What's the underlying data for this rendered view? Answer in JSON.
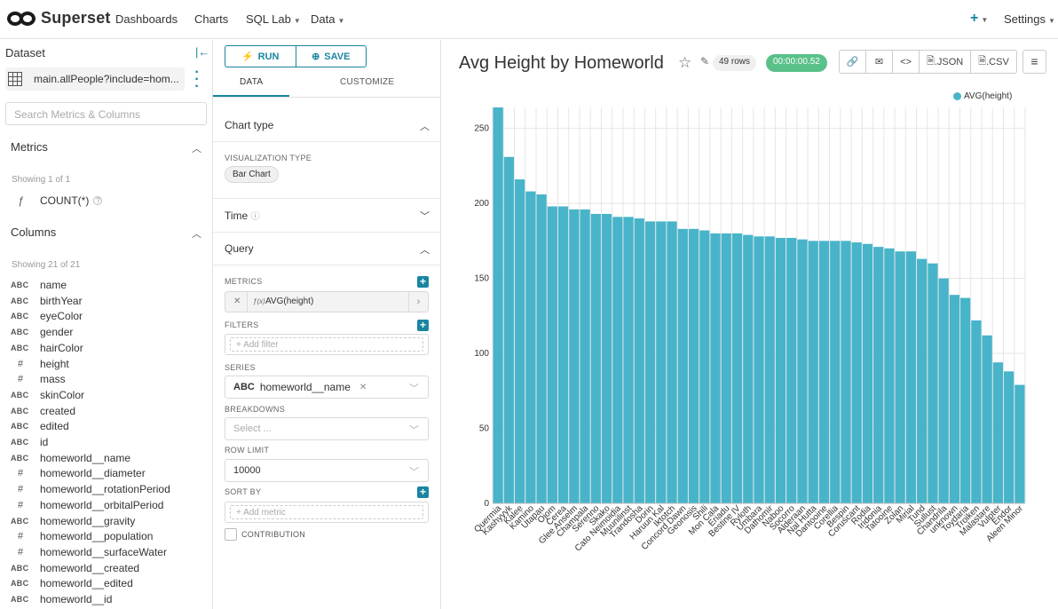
{
  "nav": {
    "brand": "Superset",
    "links": [
      {
        "label": "Dashboards",
        "caret": false
      },
      {
        "label": "Charts",
        "caret": false
      },
      {
        "label": "SQL Lab",
        "caret": true
      },
      {
        "label": "Data",
        "caret": true
      }
    ],
    "settings": "Settings"
  },
  "dataset": {
    "title": "Dataset",
    "name": "main.allPeople?include=hom...",
    "search_placeholder": "Search Metrics & Columns",
    "metrics_title": "Metrics",
    "metrics_showing": "Showing 1 of 1",
    "metrics": [
      {
        "icon": "ƒ",
        "name": "COUNT(*)"
      }
    ],
    "columns_title": "Columns",
    "columns_showing": "Showing 21 of 21",
    "columns": [
      {
        "type": "ABC",
        "name": "name"
      },
      {
        "type": "ABC",
        "name": "birthYear"
      },
      {
        "type": "ABC",
        "name": "eyeColor"
      },
      {
        "type": "ABC",
        "name": "gender"
      },
      {
        "type": "ABC",
        "name": "hairColor"
      },
      {
        "type": "#",
        "name": "height"
      },
      {
        "type": "#",
        "name": "mass"
      },
      {
        "type": "ABC",
        "name": "skinColor"
      },
      {
        "type": "ABC",
        "name": "created"
      },
      {
        "type": "ABC",
        "name": "edited"
      },
      {
        "type": "ABC",
        "name": "id"
      },
      {
        "type": "ABC",
        "name": "homeworld__name"
      },
      {
        "type": "#",
        "name": "homeworld__diameter"
      },
      {
        "type": "#",
        "name": "homeworld__rotationPeriod"
      },
      {
        "type": "#",
        "name": "homeworld__orbitalPeriod"
      },
      {
        "type": "ABC",
        "name": "homeworld__gravity"
      },
      {
        "type": "#",
        "name": "homeworld__population"
      },
      {
        "type": "#",
        "name": "homeworld__surfaceWater"
      },
      {
        "type": "ABC",
        "name": "homeworld__created"
      },
      {
        "type": "ABC",
        "name": "homeworld__edited"
      },
      {
        "type": "ABC",
        "name": "homeworld__id"
      }
    ]
  },
  "controls": {
    "run": "RUN",
    "save": "SAVE",
    "tab_data": "DATA",
    "tab_customize": "CUSTOMIZE",
    "chart_type_title": "Chart type",
    "viz_type_label": "VISUALIZATION TYPE",
    "viz_type": "Bar Chart",
    "time_title": "Time",
    "query_title": "Query",
    "metrics_label": "METRICS",
    "metric_value": "AVG(height)",
    "filters_label": "FILTERS",
    "add_filter": "Add filter",
    "series_label": "SERIES",
    "series_type": "ABC",
    "series_value": "homeworld__name",
    "breakdowns_label": "BREAKDOWNS",
    "breakdowns_placeholder": "Select ...",
    "row_limit_label": "ROW LIMIT",
    "row_limit": "10000",
    "sort_by_label": "SORT BY",
    "add_metric": "Add metric",
    "contribution_label": "CONTRIBUTION"
  },
  "header": {
    "title": "Avg Height by Homeworld",
    "rows": "49 rows",
    "time": "00:00:00.52",
    "json": ".JSON",
    "csv": ".CSV"
  },
  "colors": {
    "accent": "#1a85a0",
    "bar": "#48b4c9",
    "success": "#5ac189"
  },
  "chart_data": {
    "type": "bar",
    "legend": [
      "AVG(height)"
    ],
    "legend_position": "top-right",
    "grid": true,
    "ylim": [
      0,
      264
    ],
    "yticks": [
      0,
      50,
      100,
      150,
      200,
      250
    ],
    "categories": [
      "Quermia",
      "Kashyyyk",
      "Kalee",
      "Kamino",
      "Utapau",
      "Ojom",
      "Cerea",
      "Glee Anselm",
      "Champala",
      "Serenno",
      "Skako",
      "Cato Neimoidia",
      "Muunilinst",
      "Trandosha",
      "Dorin",
      "Haruun Kal",
      "Iktotch",
      "Concord Dawn",
      "Geonosis",
      "Shili",
      "Mon Cala",
      "Eriadu",
      "Bestine IV",
      "Ryloth",
      "Umbara",
      "Dathomir",
      "Naboo",
      "Socorro",
      "Alderaan",
      "Nal Hutta",
      "Dantooine",
      "Corellia",
      "Bespin",
      "Coruscant",
      "Rodia",
      "Iridonia",
      "Tatooine",
      "Zolan",
      "Mirial",
      "Tund",
      "Sullust",
      "Chandrila",
      "unknown",
      "Toydaria",
      "Troiken",
      "Malastare",
      "Vulpter",
      "Endor",
      "Aleen Minor"
    ],
    "values": [
      264,
      231,
      216,
      208,
      206,
      198,
      198,
      196,
      196,
      193,
      193,
      191,
      191,
      190,
      188,
      188,
      188,
      183,
      183,
      182,
      180,
      180,
      180,
      179,
      178,
      178,
      177,
      177,
      176,
      175,
      175,
      175,
      175,
      174,
      173,
      171,
      170,
      168,
      168,
      163,
      160,
      150,
      139,
      137,
      122,
      112,
      94,
      88,
      79
    ]
  }
}
